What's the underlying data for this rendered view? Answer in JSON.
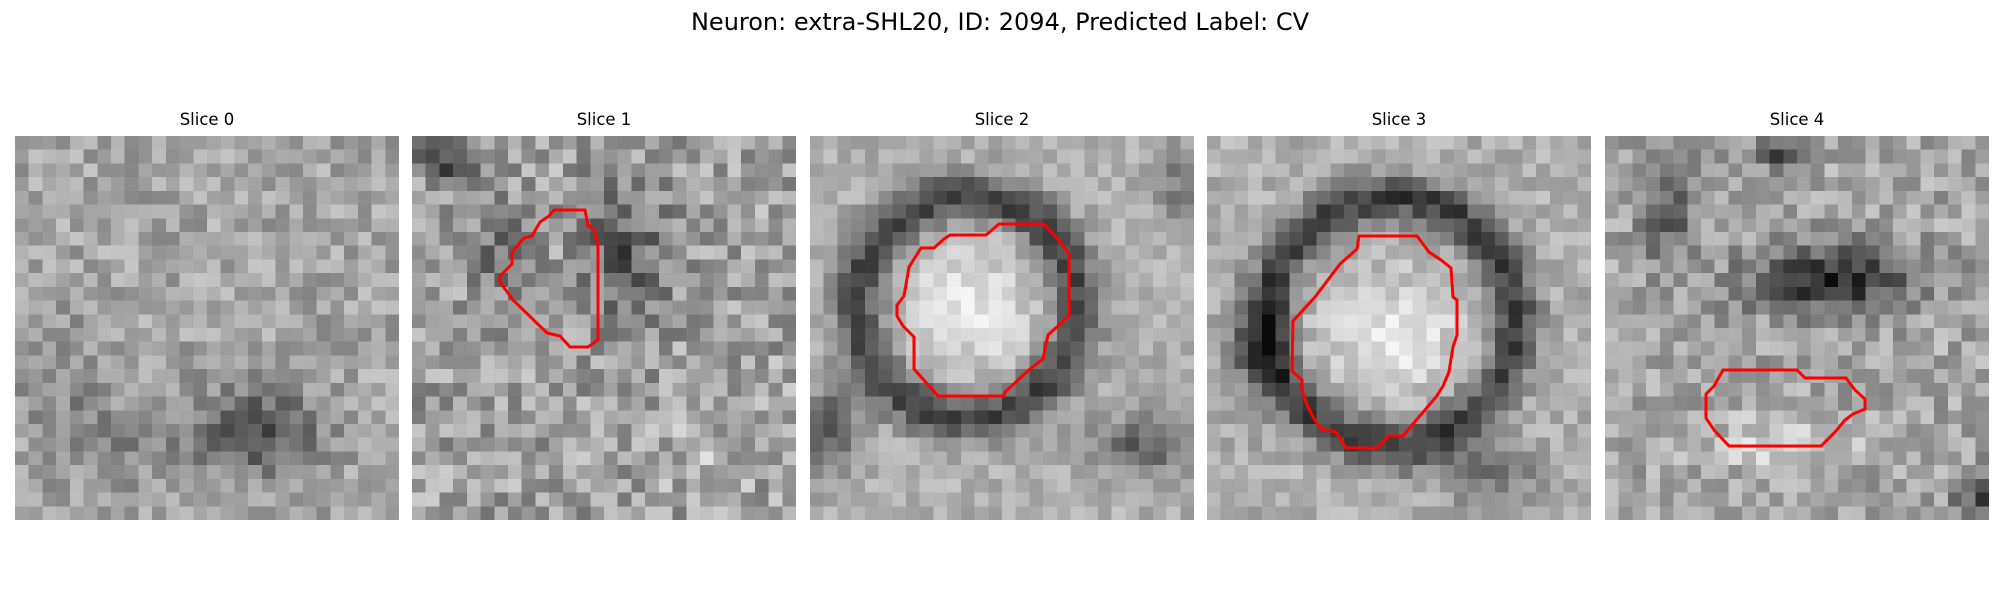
{
  "figure": {
    "title": "Neuron: extra-SHL20, ID: 2094, Predicted Label: CV"
  },
  "panels": [
    {
      "title": "Slice 0"
    },
    {
      "title": "Slice 1"
    },
    {
      "title": "Slice 2"
    },
    {
      "title": "Slice 3"
    },
    {
      "title": "Slice 4"
    }
  ],
  "colors": {
    "contour": "#ff0000",
    "background": "#ffffff"
  }
}
